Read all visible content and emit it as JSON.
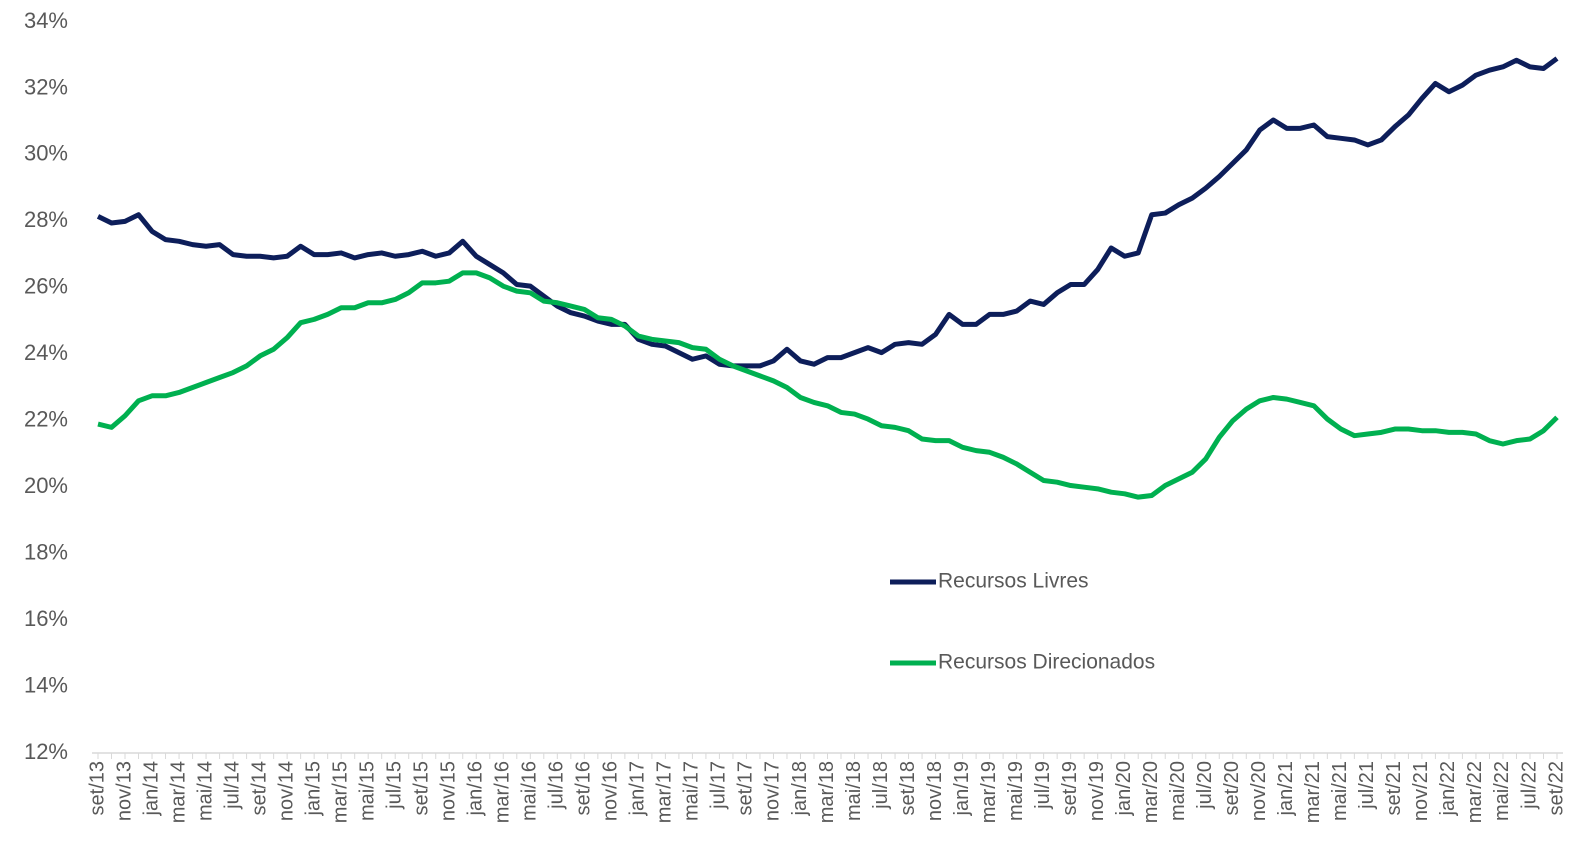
{
  "chart_data": {
    "type": "line",
    "categories": [
      "set/13",
      null,
      "nov/13",
      null,
      "jan/14",
      null,
      "mar/14",
      null,
      "mai/14",
      null,
      "jul/14",
      null,
      "set/14",
      null,
      "nov/14",
      null,
      "jan/15",
      null,
      "mar/15",
      null,
      "mai/15",
      null,
      "jul/15",
      null,
      "set/15",
      null,
      "nov/15",
      null,
      "jan/16",
      null,
      "mar/16",
      null,
      "mai/16",
      null,
      "jul/16",
      null,
      "set/16",
      null,
      "nov/16",
      null,
      "jan/17",
      null,
      "mar/17",
      null,
      "mai/17",
      null,
      "jul/17",
      null,
      "set/17",
      null,
      "nov/17",
      null,
      "jan/18",
      null,
      "mar/18",
      null,
      "mai/18",
      null,
      "jul/18",
      null,
      "set/18",
      null,
      "nov/18",
      null,
      "jan/19",
      null,
      "mar/19",
      null,
      "mai/19",
      null,
      "jul/19",
      null,
      "set/19",
      null,
      "nov/19",
      null,
      "jan/20",
      null,
      "mar/20",
      null,
      "mai/20",
      null,
      "jul/20",
      null,
      "set/20",
      null,
      "nov/20",
      null,
      "jan/21",
      null,
      "mar/21",
      null,
      "mai/21",
      null,
      "jul/21",
      null,
      "set/21",
      null,
      "nov/21",
      null,
      "jan/22",
      null,
      "mar/22",
      null,
      "mai/22",
      null,
      "jul/22",
      null,
      "set/22"
    ],
    "series": [
      {
        "name": "Recursos Livres",
        "color": "#0d1e5a",
        "values": [
          28.15,
          27.95,
          28.0,
          28.2,
          27.7,
          27.45,
          27.4,
          27.3,
          27.25,
          27.3,
          27.0,
          26.95,
          26.95,
          26.9,
          26.95,
          27.25,
          27.0,
          27.0,
          27.05,
          26.9,
          27.0,
          27.05,
          26.95,
          27.0,
          27.1,
          26.95,
          27.05,
          27.4,
          26.95,
          26.7,
          26.45,
          26.1,
          26.05,
          25.75,
          25.45,
          25.25,
          25.15,
          25.0,
          24.9,
          24.9,
          24.45,
          24.3,
          24.25,
          24.05,
          23.85,
          23.95,
          23.7,
          23.65,
          23.65,
          23.65,
          23.8,
          24.15,
          23.8,
          23.7,
          23.9,
          23.9,
          24.05,
          24.2,
          24.05,
          24.3,
          24.35,
          24.3,
          24.6,
          25.2,
          24.9,
          24.9,
          25.2,
          25.2,
          25.3,
          25.6,
          25.5,
          25.85,
          26.1,
          26.1,
          26.55,
          27.2,
          26.95,
          27.05,
          28.2,
          28.25,
          28.5,
          28.7,
          29.0,
          29.35,
          29.75,
          30.15,
          30.75,
          31.05,
          30.8,
          30.8,
          30.9,
          30.55,
          30.5,
          30.45,
          30.3,
          30.45,
          30.85,
          31.2,
          31.7,
          32.15,
          31.9,
          32.1,
          32.4,
          32.55,
          32.65,
          32.85,
          32.65,
          32.6,
          32.9
        ]
      },
      {
        "name": "Recursos Direcionados",
        "color": "#00b050",
        "values": [
          21.9,
          21.8,
          22.15,
          22.6,
          22.75,
          22.75,
          22.85,
          23.0,
          23.15,
          23.3,
          23.45,
          23.65,
          23.95,
          24.15,
          24.5,
          24.95,
          25.05,
          25.2,
          25.4,
          25.4,
          25.55,
          25.55,
          25.65,
          25.85,
          26.15,
          26.15,
          26.2,
          26.45,
          26.45,
          26.3,
          26.05,
          25.9,
          25.85,
          25.6,
          25.55,
          25.45,
          25.35,
          25.1,
          25.05,
          24.85,
          24.55,
          24.45,
          24.4,
          24.35,
          24.2,
          24.15,
          23.85,
          23.65,
          23.5,
          23.35,
          23.2,
          23.0,
          22.7,
          22.55,
          22.45,
          22.25,
          22.2,
          22.05,
          21.85,
          21.8,
          21.7,
          21.45,
          21.4,
          21.4,
          21.2,
          21.1,
          21.05,
          20.9,
          20.7,
          20.45,
          20.2,
          20.15,
          20.05,
          20.0,
          19.95,
          19.85,
          19.8,
          19.7,
          19.75,
          20.05,
          20.25,
          20.45,
          20.85,
          21.5,
          22.0,
          22.35,
          22.6,
          22.7,
          22.65,
          22.55,
          22.45,
          22.05,
          21.75,
          21.55,
          21.6,
          21.65,
          21.75,
          21.75,
          21.7,
          21.7,
          21.65,
          21.65,
          21.6,
          21.4,
          21.3,
          21.4,
          21.45,
          21.7,
          22.1
        ]
      }
    ],
    "ylim": [
      12,
      34
    ],
    "yticks": [
      {
        "value": 12,
        "label": "12%"
      },
      {
        "value": 14,
        "label": "14%"
      },
      {
        "value": 16,
        "label": "16%"
      },
      {
        "value": 18,
        "label": "18%"
      },
      {
        "value": 20,
        "label": "20%"
      },
      {
        "value": 22,
        "label": "22%"
      },
      {
        "value": 24,
        "label": "24%"
      },
      {
        "value": 26,
        "label": "26%"
      },
      {
        "value": 28,
        "label": "28%"
      },
      {
        "value": 30,
        "label": "30%"
      },
      {
        "value": 32,
        "label": "32%"
      },
      {
        "value": 34,
        "label": "34%"
      }
    ],
    "grid": false,
    "legend": "lower center"
  }
}
